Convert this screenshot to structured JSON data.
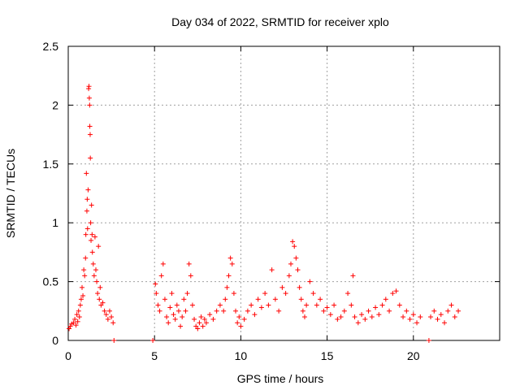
{
  "chart_data": {
    "type": "scatter",
    "title": "Day 034 of 2022, SRMTID for receiver xplo",
    "xlabel": "GPS time / hours",
    "ylabel": "SRMTID / TECUs",
    "xlim": [
      0,
      25
    ],
    "ylim": [
      0,
      2.5
    ],
    "xticks": [
      0,
      5,
      10,
      15,
      20
    ],
    "xtick_labels": [
      "0",
      "5",
      "10",
      "15",
      "20"
    ],
    "yticks": [
      0,
      0.5,
      1,
      1.5,
      2,
      2.5
    ],
    "ytick_labels": [
      "0",
      "0.5",
      "1",
      "1.5",
      "2",
      "2.5"
    ],
    "grid": true,
    "marker": "+",
    "color": "#ff0000",
    "series": [
      {
        "name": "SRMTID",
        "points": [
          [
            0.05,
            0.1
          ],
          [
            0.12,
            0.12
          ],
          [
            0.2,
            0.14
          ],
          [
            0.3,
            0.15
          ],
          [
            0.38,
            0.18
          ],
          [
            0.45,
            0.13
          ],
          [
            0.5,
            0.22
          ],
          [
            0.55,
            0.16
          ],
          [
            0.6,
            0.25
          ],
          [
            0.65,
            0.2
          ],
          [
            0.7,
            0.3
          ],
          [
            0.75,
            0.35
          ],
          [
            0.8,
            0.45
          ],
          [
            0.85,
            0.38
          ],
          [
            0.9,
            0.6
          ],
          [
            0.95,
            0.55
          ],
          [
            1.0,
            0.7
          ],
          [
            1.02,
            0.9
          ],
          [
            1.05,
            1.42
          ],
          [
            1.08,
            1.1
          ],
          [
            1.1,
            1.2
          ],
          [
            1.12,
            0.95
          ],
          [
            1.15,
            1.28
          ],
          [
            1.18,
            2.14
          ],
          [
            1.2,
            2.16
          ],
          [
            1.22,
            2.06
          ],
          [
            1.24,
            2.0
          ],
          [
            1.25,
            1.82
          ],
          [
            1.27,
            1.75
          ],
          [
            1.28,
            1.55
          ],
          [
            1.3,
            1.0
          ],
          [
            1.32,
            0.85
          ],
          [
            1.35,
            1.15
          ],
          [
            1.38,
            0.9
          ],
          [
            1.4,
            0.75
          ],
          [
            1.45,
            0.65
          ],
          [
            1.5,
            0.55
          ],
          [
            1.55,
            0.88
          ],
          [
            1.6,
            0.6
          ],
          [
            1.65,
            0.5
          ],
          [
            1.7,
            0.4
          ],
          [
            1.75,
            0.8
          ],
          [
            1.8,
            0.35
          ],
          [
            1.85,
            0.45
          ],
          [
            1.9,
            0.3
          ],
          [
            2.0,
            0.32
          ],
          [
            2.1,
            0.25
          ],
          [
            2.2,
            0.22
          ],
          [
            2.3,
            0.18
          ],
          [
            2.4,
            0.25
          ],
          [
            2.5,
            0.2
          ],
          [
            2.6,
            0.15
          ],
          [
            2.65,
            0.0
          ],
          [
            4.9,
            0.0
          ],
          [
            5.05,
            0.48
          ],
          [
            5.1,
            0.4
          ],
          [
            5.2,
            0.3
          ],
          [
            5.3,
            0.25
          ],
          [
            5.4,
            0.55
          ],
          [
            5.5,
            0.65
          ],
          [
            5.6,
            0.35
          ],
          [
            5.7,
            0.2
          ],
          [
            5.8,
            0.15
          ],
          [
            5.9,
            0.28
          ],
          [
            6.0,
            0.4
          ],
          [
            6.1,
            0.22
          ],
          [
            6.2,
            0.18
          ],
          [
            6.3,
            0.3
          ],
          [
            6.4,
            0.25
          ],
          [
            6.5,
            0.12
          ],
          [
            6.6,
            0.2
          ],
          [
            6.7,
            0.35
          ],
          [
            6.8,
            0.25
          ],
          [
            6.9,
            0.4
          ],
          [
            7.0,
            0.65
          ],
          [
            7.1,
            0.55
          ],
          [
            7.2,
            0.3
          ],
          [
            7.3,
            0.18
          ],
          [
            7.4,
            0.12
          ],
          [
            7.5,
            0.1
          ],
          [
            7.6,
            0.15
          ],
          [
            7.7,
            0.2
          ],
          [
            7.8,
            0.12
          ],
          [
            7.9,
            0.18
          ],
          [
            8.0,
            0.15
          ],
          [
            8.2,
            0.22
          ],
          [
            8.4,
            0.18
          ],
          [
            8.6,
            0.25
          ],
          [
            8.8,
            0.3
          ],
          [
            9.0,
            0.25
          ],
          [
            9.1,
            0.35
          ],
          [
            9.2,
            0.45
          ],
          [
            9.3,
            0.55
          ],
          [
            9.4,
            0.7
          ],
          [
            9.5,
            0.65
          ],
          [
            9.6,
            0.4
          ],
          [
            9.7,
            0.25
          ],
          [
            9.8,
            0.15
          ],
          [
            9.9,
            0.2
          ],
          [
            10.0,
            0.12
          ],
          [
            10.2,
            0.18
          ],
          [
            10.4,
            0.25
          ],
          [
            10.6,
            0.3
          ],
          [
            10.8,
            0.22
          ],
          [
            11.0,
            0.35
          ],
          [
            11.2,
            0.28
          ],
          [
            11.4,
            0.4
          ],
          [
            11.6,
            0.3
          ],
          [
            11.8,
            0.6
          ],
          [
            12.0,
            0.35
          ],
          [
            12.2,
            0.25
          ],
          [
            12.4,
            0.45
          ],
          [
            12.6,
            0.4
          ],
          [
            12.8,
            0.55
          ],
          [
            12.9,
            0.65
          ],
          [
            13.0,
            0.84
          ],
          [
            13.1,
            0.8
          ],
          [
            13.2,
            0.7
          ],
          [
            13.3,
            0.6
          ],
          [
            13.4,
            0.45
          ],
          [
            13.5,
            0.35
          ],
          [
            13.6,
            0.25
          ],
          [
            13.7,
            0.2
          ],
          [
            13.8,
            0.3
          ],
          [
            14.0,
            0.5
          ],
          [
            14.2,
            0.4
          ],
          [
            14.4,
            0.3
          ],
          [
            14.6,
            0.35
          ],
          [
            14.8,
            0.25
          ],
          [
            15.0,
            0.28
          ],
          [
            15.2,
            0.22
          ],
          [
            15.4,
            0.3
          ],
          [
            15.6,
            0.18
          ],
          [
            15.8,
            0.2
          ],
          [
            16.0,
            0.25
          ],
          [
            16.2,
            0.4
          ],
          [
            16.4,
            0.3
          ],
          [
            16.5,
            0.55
          ],
          [
            16.6,
            0.2
          ],
          [
            16.8,
            0.15
          ],
          [
            17.0,
            0.22
          ],
          [
            17.2,
            0.18
          ],
          [
            17.4,
            0.25
          ],
          [
            17.6,
            0.2
          ],
          [
            17.8,
            0.28
          ],
          [
            18.0,
            0.22
          ],
          [
            18.2,
            0.3
          ],
          [
            18.4,
            0.35
          ],
          [
            18.6,
            0.25
          ],
          [
            18.8,
            0.4
          ],
          [
            19.0,
            0.42
          ],
          [
            19.2,
            0.3
          ],
          [
            19.4,
            0.2
          ],
          [
            19.6,
            0.25
          ],
          [
            19.8,
            0.18
          ],
          [
            20.0,
            0.22
          ],
          [
            20.2,
            0.15
          ],
          [
            20.4,
            0.2
          ],
          [
            20.9,
            0.0
          ],
          [
            21.0,
            0.2
          ],
          [
            21.2,
            0.25
          ],
          [
            21.4,
            0.18
          ],
          [
            21.6,
            0.22
          ],
          [
            21.8,
            0.15
          ],
          [
            22.0,
            0.25
          ],
          [
            22.2,
            0.3
          ],
          [
            22.4,
            0.2
          ],
          [
            22.6,
            0.25
          ]
        ]
      }
    ]
  }
}
